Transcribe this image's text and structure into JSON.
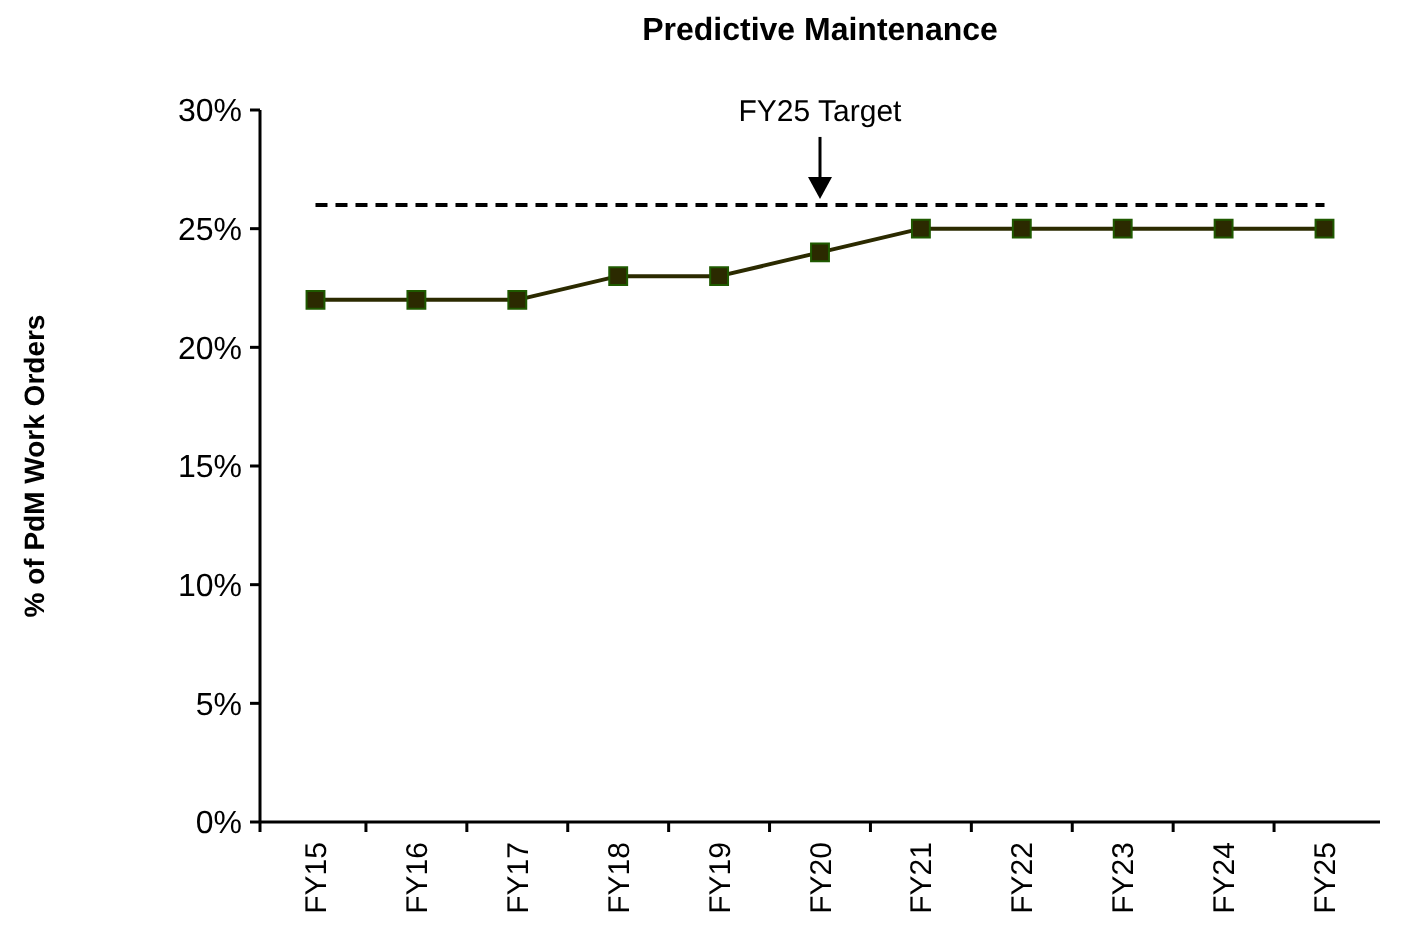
{
  "chart_data": {
    "type": "line",
    "title": "Predictive Maintenance",
    "ylabel": "% of PdM Work Orders",
    "categories": [
      "FY15",
      "FY16",
      "FY17",
      "FY18",
      "FY19",
      "FY20",
      "FY21",
      "FY22",
      "FY23",
      "FY24",
      "FY25"
    ],
    "series": [
      {
        "color": "#2b2a00",
        "values": [
          22,
          22,
          22,
          23,
          23,
          24,
          25,
          25,
          25,
          25,
          25
        ]
      }
    ],
    "ylim": [
      0,
      30
    ],
    "yticks": [
      {
        "value": 0,
        "label": "0%"
      },
      {
        "value": 5,
        "label": "5%"
      },
      {
        "value": 10,
        "label": "10%"
      },
      {
        "value": 15,
        "label": "15%"
      },
      {
        "value": 20,
        "label": "20%"
      },
      {
        "value": 25,
        "label": "25%"
      },
      {
        "value": 30,
        "label": "30%"
      }
    ],
    "ref_lines": [
      {
        "axis": "y",
        "value": 26,
        "label": "FY25 Target",
        "line_style": "dashed",
        "color": "#000000"
      }
    ],
    "marker": "square",
    "line_style": "solid",
    "grid": false
  }
}
